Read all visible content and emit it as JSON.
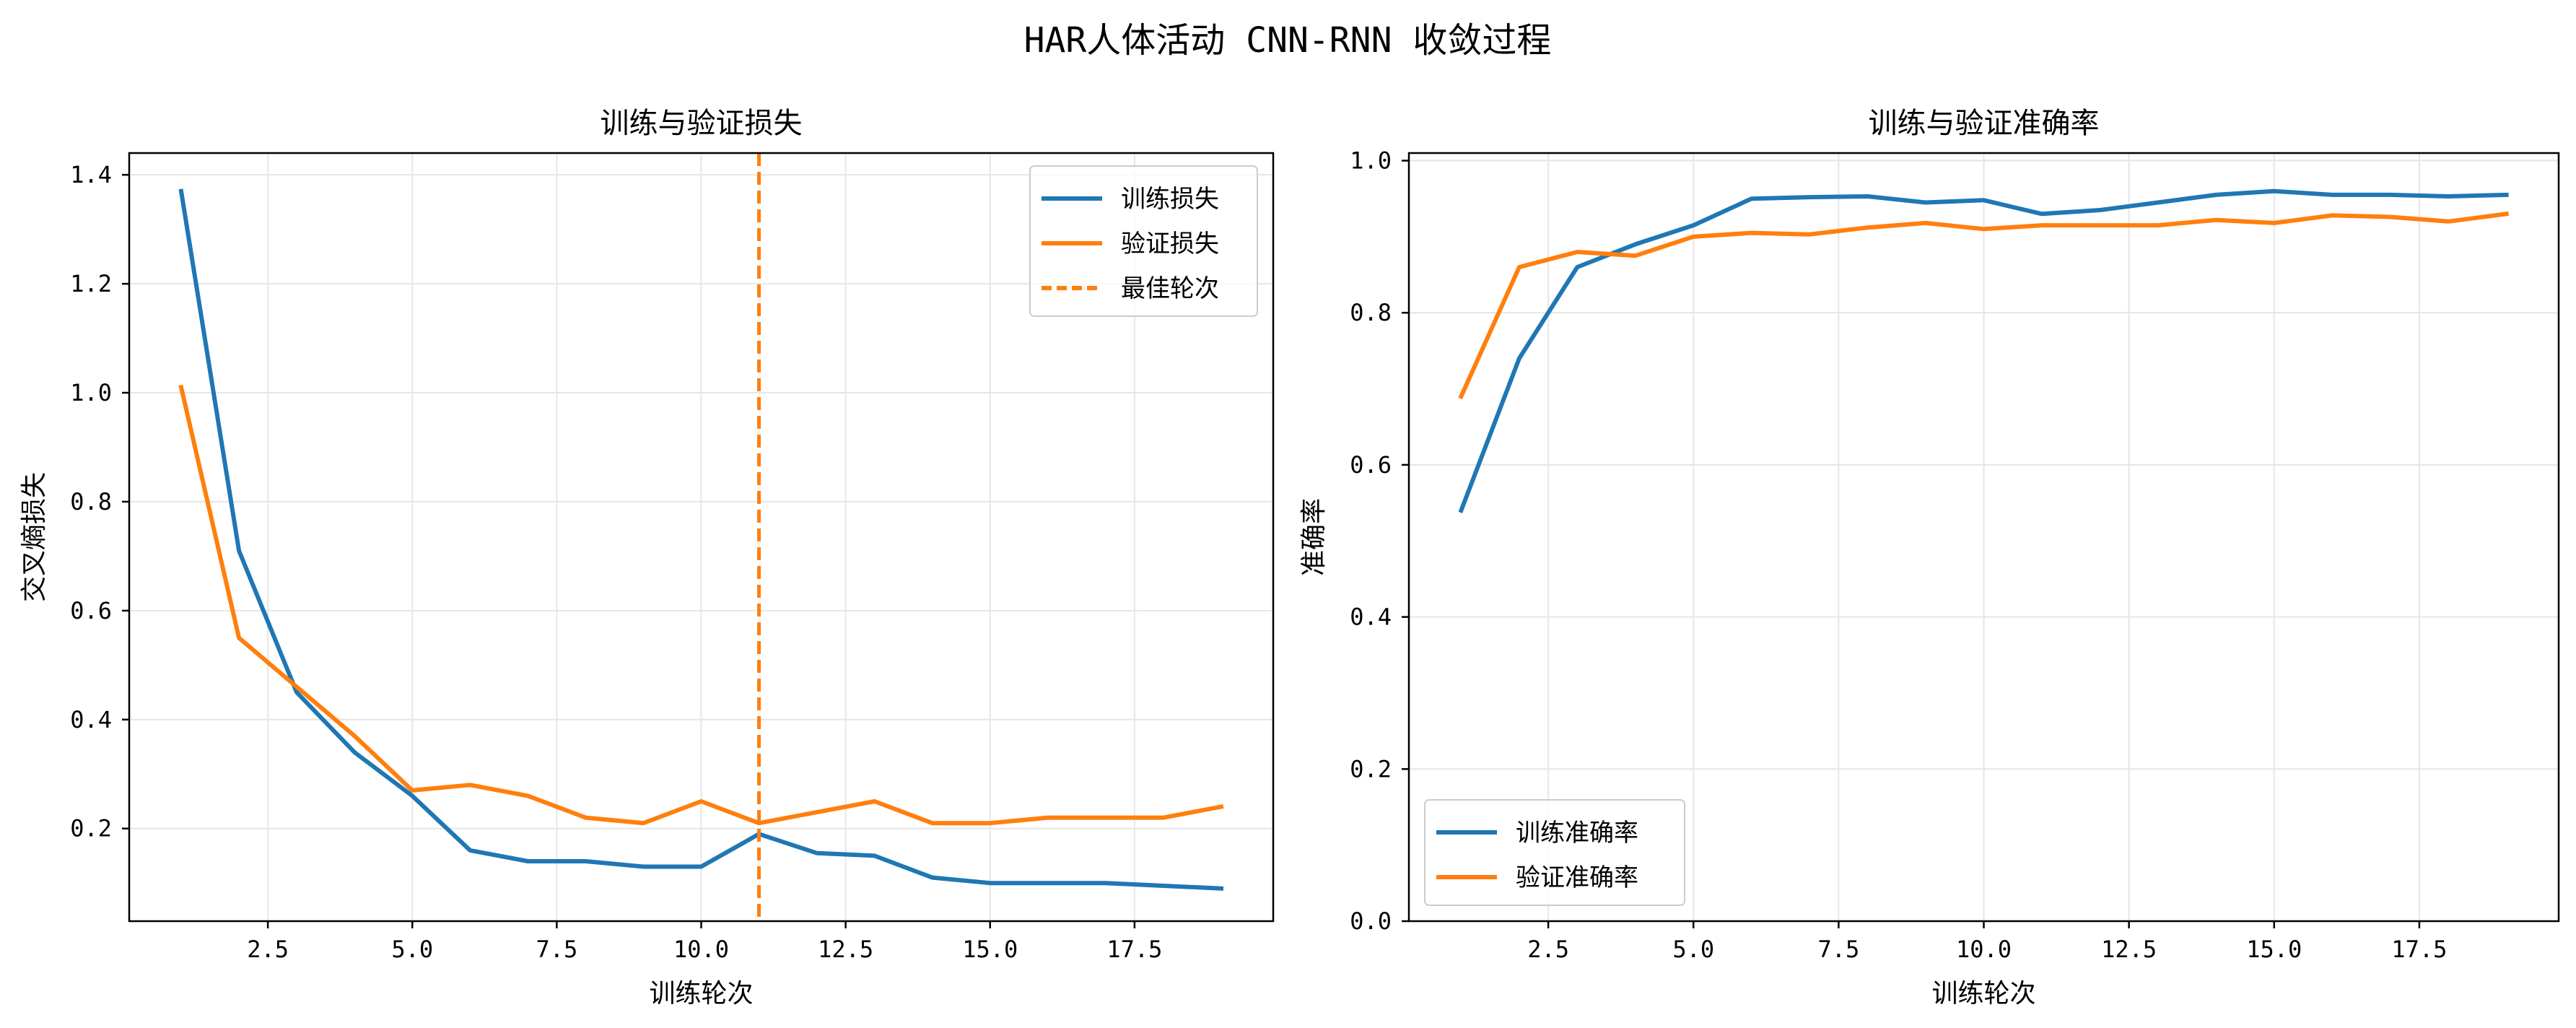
{
  "figure": {
    "title": "HAR人体活动 CNN-RNN 收敛过程"
  },
  "chart_data": [
    {
      "type": "line",
      "title": "训练与验证损失",
      "xlabel": "训练轮次",
      "ylabel": "交叉熵损失",
      "xlim": [
        0.1,
        19.9
      ],
      "ylim": [
        0.03,
        1.44
      ],
      "xticks": [
        2.5,
        5.0,
        7.5,
        10.0,
        12.5,
        15.0,
        17.5
      ],
      "xtick_labels": [
        "2.5",
        "5.0",
        "7.5",
        "10.0",
        "12.5",
        "15.0",
        "17.5"
      ],
      "yticks": [
        0.2,
        0.4,
        0.6,
        0.8,
        1.0,
        1.2,
        1.4
      ],
      "ytick_labels": [
        "0.2",
        "0.4",
        "0.6",
        "0.8",
        "1.0",
        "1.2",
        "1.4"
      ],
      "grid": true,
      "legend": "top-right",
      "x": [
        1,
        2,
        3,
        4,
        5,
        6,
        7,
        8,
        9,
        10,
        11,
        12,
        13,
        14,
        15,
        16,
        17,
        18,
        19
      ],
      "series": [
        {
          "name": "训练损失",
          "color": "#1f77b4",
          "values": [
            1.37,
            0.71,
            0.45,
            0.34,
            0.26,
            0.16,
            0.14,
            0.14,
            0.13,
            0.13,
            0.19,
            0.155,
            0.15,
            0.11,
            0.1,
            0.1,
            0.1,
            0.095,
            0.09
          ]
        },
        {
          "name": "验证损失",
          "color": "#ff7f0e",
          "values": [
            1.01,
            0.55,
            0.46,
            0.37,
            0.27,
            0.28,
            0.26,
            0.22,
            0.21,
            0.25,
            0.21,
            0.23,
            0.25,
            0.21,
            0.21,
            0.22,
            0.22,
            0.22,
            0.24
          ]
        }
      ],
      "vline": {
        "name": "最佳轮次",
        "x": 11,
        "color": "#ff7f0e",
        "style": "dashed"
      }
    },
    {
      "type": "line",
      "title": "训练与验证准确率",
      "xlabel": "训练轮次",
      "ylabel": "准确率",
      "xlim": [
        0.1,
        19.9
      ],
      "ylim": [
        0.0,
        1.01
      ],
      "xticks": [
        2.5,
        5.0,
        7.5,
        10.0,
        12.5,
        15.0,
        17.5
      ],
      "xtick_labels": [
        "2.5",
        "5.0",
        "7.5",
        "10.0",
        "12.5",
        "15.0",
        "17.5"
      ],
      "yticks": [
        0.0,
        0.2,
        0.4,
        0.6,
        0.8,
        1.0
      ],
      "ytick_labels": [
        "0.0",
        "0.2",
        "0.4",
        "0.6",
        "0.8",
        "1.0"
      ],
      "grid": true,
      "legend": "bottom-left",
      "x": [
        1,
        2,
        3,
        4,
        5,
        6,
        7,
        8,
        9,
        10,
        11,
        12,
        13,
        14,
        15,
        16,
        17,
        18,
        19
      ],
      "series": [
        {
          "name": "训练准确率",
          "color": "#1f77b4",
          "values": [
            0.54,
            0.74,
            0.86,
            0.89,
            0.915,
            0.95,
            0.952,
            0.953,
            0.945,
            0.948,
            0.93,
            0.935,
            0.945,
            0.955,
            0.96,
            0.955,
            0.955,
            0.953,
            0.955
          ]
        },
        {
          "name": "验证准确率",
          "color": "#ff7f0e",
          "values": [
            0.69,
            0.86,
            0.88,
            0.875,
            0.9,
            0.905,
            0.903,
            0.912,
            0.918,
            0.91,
            0.915,
            0.915,
            0.915,
            0.922,
            0.918,
            0.928,
            0.926,
            0.92,
            0.93
          ]
        }
      ]
    }
  ]
}
